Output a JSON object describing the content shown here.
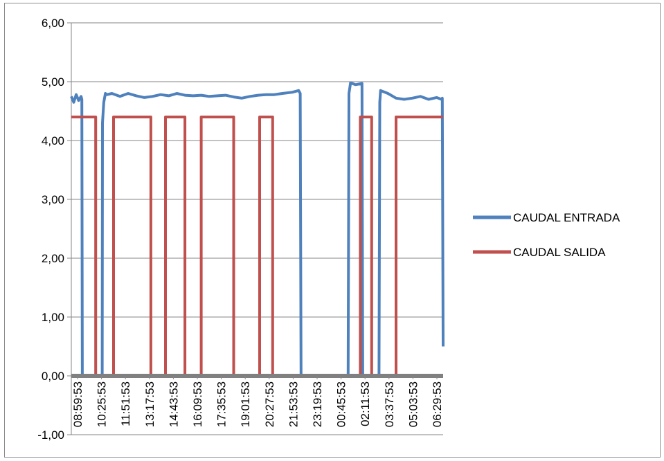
{
  "chart_data": {
    "type": "line",
    "title": "",
    "xlabel": "",
    "ylabel": "",
    "ylim": [
      -1,
      6
    ],
    "y_ticks": [
      "-1,00",
      "0,00",
      "1,00",
      "2,00",
      "3,00",
      "4,00",
      "5,00",
      "6,00"
    ],
    "y_tick_values": [
      -1,
      0,
      1,
      2,
      3,
      4,
      5,
      6
    ],
    "x_tick_labels": [
      "08:59:53",
      "10:25:53",
      "11:51:53",
      "13:17:53",
      "14:43:53",
      "16:09:53",
      "17:35:53",
      "19:01:53",
      "20:27:53",
      "21:53:53",
      "23:19:53",
      "00:45:53",
      "02:11:53",
      "03:37:53",
      "05:03:53",
      "06:29:53"
    ],
    "x_unit": "hours from first tick label",
    "x_range": [
      0,
      22.9
    ],
    "grid": "horizontal",
    "legend_position": "right",
    "colors": {
      "entrada": "#4f81bd",
      "salida": "#c0504d",
      "grid": "#868686",
      "zero_line": "#808080"
    },
    "series": [
      {
        "name": "CAUDAL ENTRADA",
        "color": "#4f81bd",
        "x": [
          0.0,
          0.15,
          0.3,
          0.45,
          0.6,
          0.65,
          0.68,
          1.9,
          1.92,
          2.0,
          2.1,
          2.2,
          2.5,
          3.0,
          3.5,
          4.0,
          4.5,
          5.0,
          5.5,
          6.0,
          6.5,
          7.0,
          7.5,
          8.0,
          8.5,
          9.0,
          9.5,
          10.0,
          10.5,
          11.0,
          11.5,
          12.0,
          12.5,
          13.0,
          13.6,
          14.0,
          14.1,
          14.15,
          17.05,
          17.1,
          17.2,
          17.5,
          17.9,
          17.95,
          18.95,
          19.0,
          19.05,
          19.5,
          20.0,
          20.5,
          21.0,
          21.5,
          22.0,
          22.5,
          22.8,
          22.85,
          22.9
        ],
        "y": [
          4.75,
          4.65,
          4.78,
          4.68,
          4.75,
          4.7,
          0.0,
          0.0,
          4.3,
          4.65,
          4.8,
          4.78,
          4.8,
          4.75,
          4.8,
          4.76,
          4.73,
          4.75,
          4.78,
          4.76,
          4.8,
          4.77,
          4.76,
          4.77,
          4.75,
          4.76,
          4.77,
          4.74,
          4.72,
          4.75,
          4.77,
          4.78,
          4.78,
          4.8,
          4.82,
          4.85,
          4.8,
          0.0,
          0.0,
          4.8,
          4.98,
          4.95,
          4.97,
          0.0,
          0.0,
          4.65,
          4.85,
          4.8,
          4.72,
          4.7,
          4.72,
          4.75,
          4.7,
          4.73,
          4.7,
          4.72,
          0.5
        ]
      },
      {
        "name": "CAUDAL SALIDA",
        "color": "#c0504d",
        "x": [
          0.0,
          1.5,
          1.5,
          2.6,
          2.6,
          4.9,
          4.9,
          5.8,
          5.8,
          7.0,
          7.0,
          8.0,
          8.0,
          10.0,
          10.0,
          11.6,
          11.6,
          12.4,
          12.4,
          17.8,
          17.8,
          18.5,
          18.5,
          20.0,
          20.0,
          22.9
        ],
        "y": [
          4.4,
          4.4,
          0.0,
          0.0,
          4.4,
          4.4,
          0.0,
          0.0,
          4.4,
          4.4,
          0.0,
          0.0,
          4.4,
          4.4,
          0.0,
          0.0,
          4.4,
          4.4,
          0.0,
          0.0,
          4.4,
          4.4,
          0.0,
          0.0,
          4.4,
          4.4
        ]
      }
    ]
  }
}
